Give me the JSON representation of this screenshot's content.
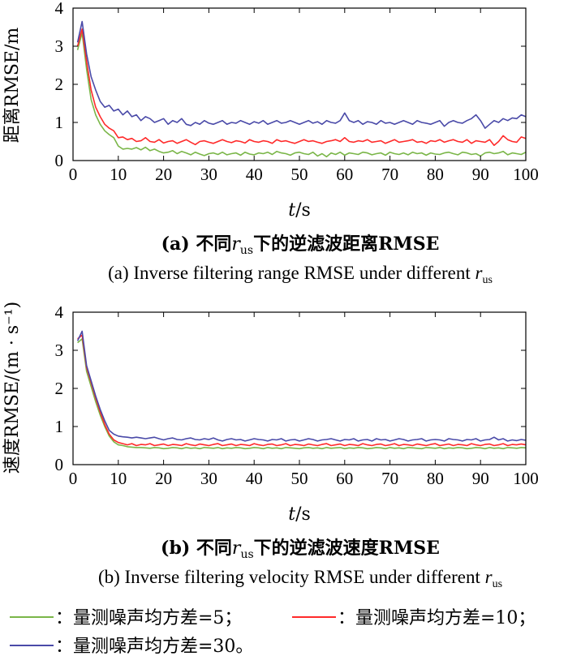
{
  "captions": {
    "a_zh_prefix": "(a) 不同",
    "a_zh_suffix": "下的逆滤波距离RMSE",
    "a_en": "(a) Inverse filtering range RMSE under different",
    "b_zh_prefix": "(b) 不同",
    "b_zh_suffix": "下的逆滤波速度RMSE",
    "b_en": "(b) Inverse filtering velocity RMSE under different",
    "r_symbol": "r",
    "r_sub": "us"
  },
  "legend": [
    {
      "label": "：量测噪声均方差=5；",
      "color": "#7ab648"
    },
    {
      "label": "：量测噪声均方差=10；",
      "color": "#ff2a2a"
    },
    {
      "label": "：量测噪声均方差=30。",
      "color": "#4a4aa8"
    }
  ],
  "colors": {
    "axis": "#000000"
  },
  "chart_data": [
    {
      "type": "line",
      "ylabel": "距离RMSE/m",
      "xlabel_italic": "t",
      "xlabel_unit": "/s",
      "xlim": [
        0,
        100
      ],
      "ylim": [
        0,
        4
      ],
      "xticks": [
        0,
        10,
        20,
        30,
        40,
        50,
        60,
        70,
        80,
        90,
        100
      ],
      "yticks": [
        0,
        1,
        2,
        3,
        4
      ],
      "grid": false,
      "x": [
        1,
        2,
        3,
        4,
        5,
        6,
        7,
        8,
        9,
        10,
        11,
        12,
        13,
        14,
        15,
        16,
        17,
        18,
        19,
        20,
        21,
        22,
        23,
        24,
        25,
        26,
        27,
        28,
        29,
        30,
        31,
        32,
        33,
        34,
        35,
        36,
        37,
        38,
        39,
        40,
        41,
        42,
        43,
        44,
        45,
        46,
        47,
        48,
        49,
        50,
        51,
        52,
        53,
        54,
        55,
        56,
        57,
        58,
        59,
        60,
        61,
        62,
        63,
        64,
        65,
        66,
        67,
        68,
        69,
        70,
        71,
        72,
        73,
        74,
        75,
        76,
        77,
        78,
        79,
        80,
        81,
        82,
        83,
        84,
        85,
        86,
        87,
        88,
        89,
        90,
        91,
        92,
        93,
        94,
        95,
        96,
        97,
        98,
        99,
        100
      ],
      "series": [
        {
          "values": [
            2.9,
            3.35,
            2.4,
            1.6,
            1.2,
            0.95,
            0.78,
            0.68,
            0.6,
            0.38,
            0.3,
            0.32,
            0.3,
            0.34,
            0.28,
            0.35,
            0.26,
            0.3,
            0.24,
            0.2,
            0.22,
            0.26,
            0.18,
            0.24,
            0.2,
            0.15,
            0.22,
            0.17,
            0.13,
            0.18,
            0.2,
            0.16,
            0.22,
            0.15,
            0.18,
            0.2,
            0.14,
            0.22,
            0.17,
            0.15,
            0.2,
            0.18,
            0.22,
            0.16,
            0.24,
            0.2,
            0.18,
            0.14,
            0.2,
            0.22,
            0.18,
            0.16,
            0.22,
            0.12,
            0.18,
            0.1,
            0.2,
            0.16,
            0.22,
            0.14,
            0.2,
            0.18,
            0.16,
            0.22,
            0.2,
            0.15,
            0.18,
            0.2,
            0.14,
            0.22,
            0.18,
            0.16,
            0.2,
            0.15,
            0.22,
            0.18,
            0.2,
            0.14,
            0.2,
            0.17,
            0.16,
            0.2,
            0.22,
            0.18,
            0.15,
            0.22,
            0.2,
            0.16,
            0.18,
            0.12,
            0.2,
            0.22,
            0.18,
            0.2,
            0.24,
            0.15,
            0.2,
            0.18,
            0.16,
            0.22
          ]
        },
        {
          "values": [
            3.0,
            3.45,
            2.6,
            1.85,
            1.4,
            1.15,
            0.95,
            0.85,
            0.78,
            0.6,
            0.62,
            0.55,
            0.58,
            0.5,
            0.52,
            0.6,
            0.5,
            0.48,
            0.55,
            0.46,
            0.5,
            0.52,
            0.45,
            0.5,
            0.55,
            0.48,
            0.42,
            0.5,
            0.52,
            0.48,
            0.45,
            0.5,
            0.55,
            0.5,
            0.47,
            0.52,
            0.5,
            0.46,
            0.55,
            0.5,
            0.48,
            0.52,
            0.5,
            0.45,
            0.55,
            0.5,
            0.52,
            0.48,
            0.45,
            0.5,
            0.55,
            0.5,
            0.52,
            0.48,
            0.45,
            0.5,
            0.52,
            0.55,
            0.5,
            0.6,
            0.5,
            0.48,
            0.52,
            0.5,
            0.55,
            0.48,
            0.5,
            0.52,
            0.45,
            0.5,
            0.55,
            0.48,
            0.5,
            0.52,
            0.55,
            0.48,
            0.5,
            0.45,
            0.52,
            0.5,
            0.55,
            0.48,
            0.52,
            0.55,
            0.5,
            0.48,
            0.55,
            0.45,
            0.52,
            0.5,
            0.48,
            0.55,
            0.4,
            0.5,
            0.65,
            0.55,
            0.5,
            0.48,
            0.62,
            0.58
          ]
        },
        {
          "values": [
            3.1,
            3.65,
            2.8,
            2.2,
            1.85,
            1.55,
            1.4,
            1.45,
            1.3,
            1.35,
            1.2,
            1.3,
            1.15,
            1.2,
            1.05,
            1.15,
            1.1,
            1.0,
            1.05,
            1.1,
            0.95,
            1.05,
            1.0,
            1.1,
            0.95,
            0.92,
            1.0,
            0.95,
            1.05,
            0.98,
            0.95,
            1.0,
            1.05,
            0.95,
            1.0,
            0.98,
            1.05,
            1.0,
            0.95,
            1.02,
            0.98,
            1.05,
            0.95,
            1.0,
            1.05,
            0.98,
            1.0,
            1.05,
            1.0,
            0.95,
            1.0,
            1.05,
            0.98,
            1.02,
            0.95,
            1.05,
            1.0,
            0.98,
            1.05,
            1.25,
            1.05,
            1.0,
            1.05,
            0.95,
            1.02,
            1.0,
            0.95,
            1.05,
            0.98,
            1.0,
            0.95,
            1.0,
            1.05,
            1.0,
            0.95,
            1.05,
            1.0,
            0.98,
            0.95,
            1.0,
            1.05,
            0.9,
            1.0,
            1.05,
            1.0,
            0.98,
            1.05,
            1.1,
            1.2,
            1.05,
            0.85,
            0.95,
            1.05,
            1.0,
            1.1,
            1.05,
            1.12,
            1.1,
            1.2,
            1.15
          ]
        }
      ]
    },
    {
      "type": "line",
      "ylabel": "速度RMSE/(m · s⁻¹)",
      "xlabel_italic": "t",
      "xlabel_unit": "/s",
      "xlim": [
        0,
        100
      ],
      "ylim": [
        0,
        4
      ],
      "xticks": [
        0,
        10,
        20,
        30,
        40,
        50,
        60,
        70,
        80,
        90,
        100
      ],
      "yticks": [
        0,
        1,
        2,
        3,
        4
      ],
      "grid": false,
      "x": [
        1,
        2,
        3,
        4,
        5,
        6,
        7,
        8,
        9,
        10,
        11,
        12,
        13,
        14,
        15,
        16,
        17,
        18,
        19,
        20,
        21,
        22,
        23,
        24,
        25,
        26,
        27,
        28,
        29,
        30,
        31,
        32,
        33,
        34,
        35,
        36,
        37,
        38,
        39,
        40,
        41,
        42,
        43,
        44,
        45,
        46,
        47,
        48,
        49,
        50,
        51,
        52,
        53,
        54,
        55,
        56,
        57,
        58,
        59,
        60,
        61,
        62,
        63,
        64,
        65,
        66,
        67,
        68,
        69,
        70,
        71,
        72,
        73,
        74,
        75,
        76,
        77,
        78,
        79,
        80,
        81,
        82,
        83,
        84,
        85,
        86,
        87,
        88,
        89,
        90,
        91,
        92,
        93,
        94,
        95,
        96,
        97,
        98,
        99,
        100
      ],
      "series": [
        {
          "values": [
            3.2,
            3.3,
            2.45,
            2.05,
            1.65,
            1.3,
            1.0,
            0.75,
            0.6,
            0.52,
            0.5,
            0.47,
            0.46,
            0.45,
            0.45,
            0.44,
            0.43,
            0.45,
            0.44,
            0.42,
            0.43,
            0.45,
            0.44,
            0.42,
            0.45,
            0.43,
            0.44,
            0.42,
            0.45,
            0.44,
            0.43,
            0.45,
            0.42,
            0.44,
            0.43,
            0.45,
            0.44,
            0.42,
            0.43,
            0.45,
            0.44,
            0.42,
            0.45,
            0.43,
            0.44,
            0.42,
            0.45,
            0.44,
            0.43,
            0.42,
            0.44,
            0.45,
            0.43,
            0.44,
            0.42,
            0.45,
            0.43,
            0.44,
            0.45,
            0.42,
            0.44,
            0.43,
            0.45,
            0.44,
            0.42,
            0.43,
            0.45,
            0.44,
            0.42,
            0.45,
            0.43,
            0.44,
            0.42,
            0.45,
            0.44,
            0.43,
            0.42,
            0.45,
            0.44,
            0.43,
            0.45,
            0.42,
            0.44,
            0.43,
            0.45,
            0.44,
            0.42,
            0.43,
            0.45,
            0.44,
            0.42,
            0.45,
            0.43,
            0.44,
            0.42,
            0.45,
            0.44,
            0.43,
            0.45,
            0.44
          ]
        },
        {
          "values": [
            3.3,
            3.4,
            2.55,
            2.15,
            1.75,
            1.38,
            1.05,
            0.8,
            0.65,
            0.58,
            0.55,
            0.52,
            0.55,
            0.5,
            0.53,
            0.52,
            0.55,
            0.5,
            0.52,
            0.54,
            0.5,
            0.53,
            0.52,
            0.5,
            0.55,
            0.52,
            0.5,
            0.54,
            0.52,
            0.5,
            0.53,
            0.55,
            0.5,
            0.52,
            0.54,
            0.5,
            0.53,
            0.52,
            0.5,
            0.55,
            0.52,
            0.5,
            0.53,
            0.54,
            0.5,
            0.52,
            0.55,
            0.5,
            0.53,
            0.52,
            0.5,
            0.54,
            0.52,
            0.5,
            0.53,
            0.55,
            0.5,
            0.52,
            0.54,
            0.5,
            0.53,
            0.52,
            0.5,
            0.55,
            0.52,
            0.5,
            0.53,
            0.54,
            0.5,
            0.52,
            0.55,
            0.5,
            0.53,
            0.52,
            0.5,
            0.54,
            0.52,
            0.5,
            0.53,
            0.55,
            0.5,
            0.52,
            0.54,
            0.5,
            0.53,
            0.52,
            0.5,
            0.55,
            0.52,
            0.5,
            0.53,
            0.54,
            0.5,
            0.52,
            0.55,
            0.5,
            0.53,
            0.52,
            0.54,
            0.52
          ]
        },
        {
          "values": [
            3.25,
            3.5,
            2.6,
            2.2,
            1.8,
            1.45,
            1.15,
            0.9,
            0.8,
            0.75,
            0.73,
            0.72,
            0.7,
            0.72,
            0.7,
            0.68,
            0.7,
            0.72,
            0.68,
            0.65,
            0.68,
            0.7,
            0.66,
            0.65,
            0.68,
            0.7,
            0.66,
            0.65,
            0.68,
            0.66,
            0.7,
            0.65,
            0.62,
            0.66,
            0.68,
            0.65,
            0.66,
            0.62,
            0.65,
            0.68,
            0.66,
            0.65,
            0.62,
            0.66,
            0.65,
            0.68,
            0.62,
            0.65,
            0.66,
            0.62,
            0.65,
            0.68,
            0.66,
            0.62,
            0.65,
            0.66,
            0.68,
            0.65,
            0.62,
            0.66,
            0.65,
            0.68,
            0.62,
            0.65,
            0.66,
            0.62,
            0.68,
            0.65,
            0.66,
            0.62,
            0.65,
            0.68,
            0.66,
            0.62,
            0.65,
            0.66,
            0.68,
            0.62,
            0.65,
            0.66,
            0.65,
            0.62,
            0.68,
            0.66,
            0.65,
            0.62,
            0.66,
            0.65,
            0.68,
            0.62,
            0.65,
            0.66,
            0.72,
            0.65,
            0.68,
            0.62,
            0.65,
            0.63,
            0.66,
            0.64
          ]
        }
      ]
    }
  ]
}
